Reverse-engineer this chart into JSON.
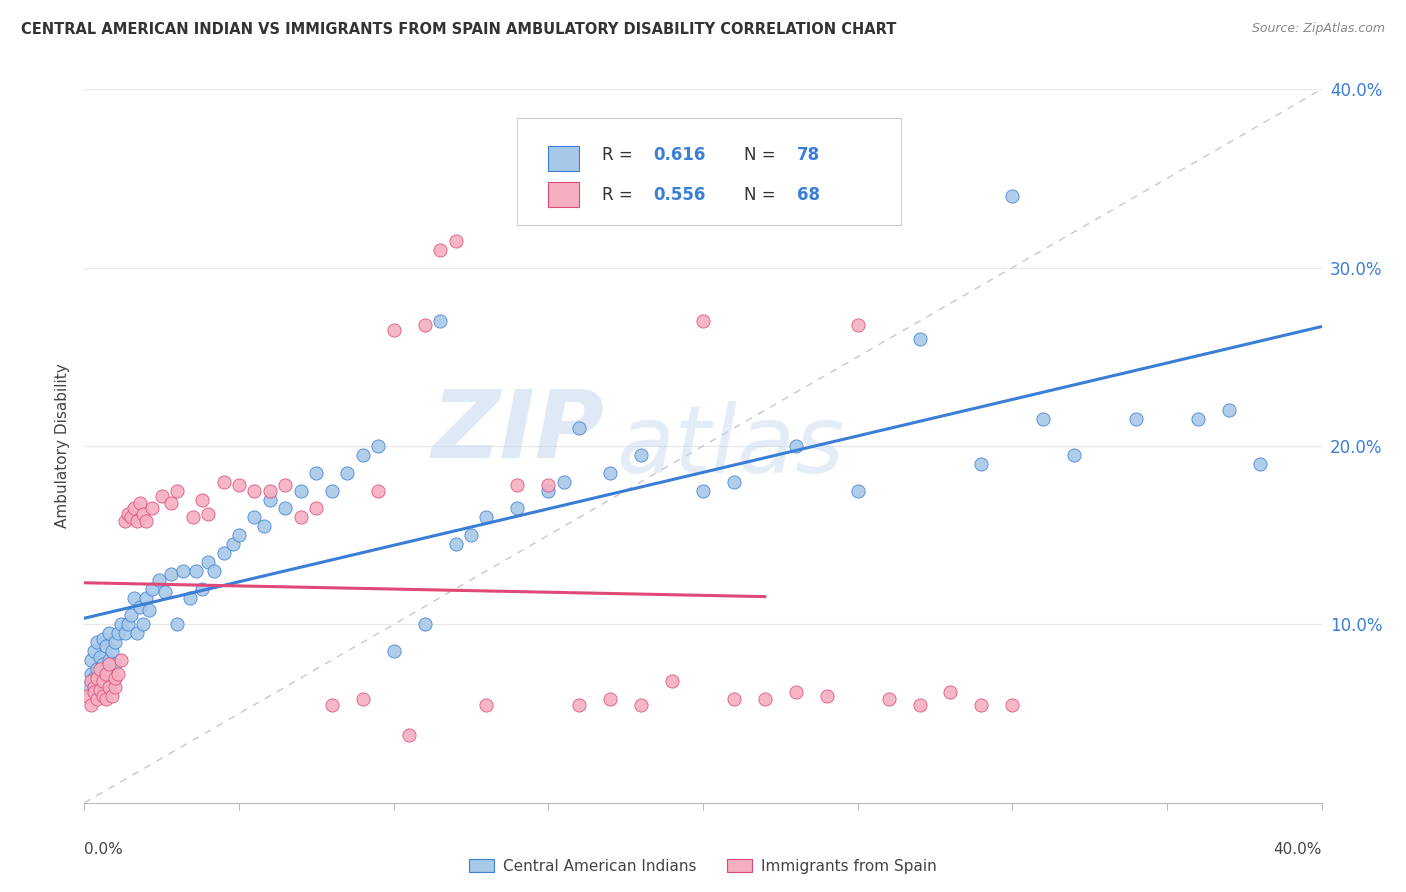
{
  "title": "CENTRAL AMERICAN INDIAN VS IMMIGRANTS FROM SPAIN AMBULATORY DISABILITY CORRELATION CHART",
  "source": "Source: ZipAtlas.com",
  "ylabel": "Ambulatory Disability",
  "legend_label1": "Central American Indians",
  "legend_label2": "Immigrants from Spain",
  "R1": 0.616,
  "N1": 78,
  "R2": 0.556,
  "N2": 68,
  "color_blue": "#a8c8e8",
  "color_pink": "#f4b0c0",
  "line_color_blue": "#3a7fd5",
  "line_color_pink": "#e04878",
  "diagonal_color": "#c8c8c8",
  "watermark_zip": "ZIP",
  "watermark_atlas": "atlas",
  "background_color": "#ffffff",
  "grid_color": "#e8e8e8",
  "xlim": [
    0.0,
    0.4
  ],
  "ylim": [
    0.0,
    0.4
  ],
  "blue_x": [
    0.001,
    0.002,
    0.002,
    0.003,
    0.003,
    0.004,
    0.004,
    0.005,
    0.005,
    0.006,
    0.006,
    0.007,
    0.007,
    0.008,
    0.008,
    0.009,
    0.01,
    0.01,
    0.011,
    0.012,
    0.013,
    0.014,
    0.015,
    0.016,
    0.017,
    0.018,
    0.019,
    0.02,
    0.021,
    0.022,
    0.024,
    0.026,
    0.028,
    0.03,
    0.032,
    0.034,
    0.036,
    0.038,
    0.04,
    0.042,
    0.045,
    0.048,
    0.05,
    0.055,
    0.058,
    0.06,
    0.065,
    0.07,
    0.075,
    0.08,
    0.085,
    0.09,
    0.095,
    0.1,
    0.11,
    0.115,
    0.12,
    0.125,
    0.13,
    0.14,
    0.15,
    0.155,
    0.16,
    0.17,
    0.18,
    0.2,
    0.21,
    0.23,
    0.25,
    0.27,
    0.29,
    0.3,
    0.31,
    0.32,
    0.34,
    0.36,
    0.37,
    0.38
  ],
  "blue_y": [
    0.065,
    0.072,
    0.08,
    0.07,
    0.085,
    0.075,
    0.09,
    0.068,
    0.082,
    0.078,
    0.092,
    0.075,
    0.088,
    0.08,
    0.095,
    0.085,
    0.09,
    0.078,
    0.095,
    0.1,
    0.095,
    0.1,
    0.105,
    0.115,
    0.095,
    0.11,
    0.1,
    0.115,
    0.108,
    0.12,
    0.125,
    0.118,
    0.128,
    0.1,
    0.13,
    0.115,
    0.13,
    0.12,
    0.135,
    0.13,
    0.14,
    0.145,
    0.15,
    0.16,
    0.155,
    0.17,
    0.165,
    0.175,
    0.185,
    0.175,
    0.185,
    0.195,
    0.2,
    0.085,
    0.1,
    0.27,
    0.145,
    0.15,
    0.16,
    0.165,
    0.175,
    0.18,
    0.21,
    0.185,
    0.195,
    0.175,
    0.18,
    0.2,
    0.175,
    0.26,
    0.19,
    0.34,
    0.215,
    0.195,
    0.215,
    0.215,
    0.22,
    0.19
  ],
  "pink_x": [
    0.001,
    0.002,
    0.002,
    0.003,
    0.003,
    0.004,
    0.004,
    0.005,
    0.005,
    0.006,
    0.006,
    0.007,
    0.007,
    0.008,
    0.008,
    0.009,
    0.01,
    0.01,
    0.011,
    0.012,
    0.013,
    0.014,
    0.015,
    0.016,
    0.017,
    0.018,
    0.019,
    0.02,
    0.022,
    0.025,
    0.028,
    0.03,
    0.035,
    0.038,
    0.04,
    0.045,
    0.05,
    0.055,
    0.06,
    0.065,
    0.07,
    0.075,
    0.08,
    0.09,
    0.095,
    0.1,
    0.105,
    0.11,
    0.115,
    0.12,
    0.13,
    0.14,
    0.15,
    0.16,
    0.17,
    0.18,
    0.19,
    0.2,
    0.21,
    0.22,
    0.23,
    0.24,
    0.25,
    0.26,
    0.27,
    0.28,
    0.29,
    0.3
  ],
  "pink_y": [
    0.06,
    0.068,
    0.055,
    0.065,
    0.062,
    0.07,
    0.058,
    0.063,
    0.075,
    0.06,
    0.068,
    0.072,
    0.058,
    0.065,
    0.078,
    0.06,
    0.065,
    0.07,
    0.072,
    0.08,
    0.158,
    0.162,
    0.16,
    0.165,
    0.158,
    0.168,
    0.162,
    0.158,
    0.165,
    0.172,
    0.168,
    0.175,
    0.16,
    0.17,
    0.162,
    0.18,
    0.178,
    0.175,
    0.175,
    0.178,
    0.16,
    0.165,
    0.055,
    0.058,
    0.175,
    0.265,
    0.038,
    0.268,
    0.31,
    0.315,
    0.055,
    0.178,
    0.178,
    0.055,
    0.058,
    0.055,
    0.068,
    0.27,
    0.058,
    0.058,
    0.062,
    0.06,
    0.268,
    0.058,
    0.055,
    0.062,
    0.055,
    0.055
  ]
}
